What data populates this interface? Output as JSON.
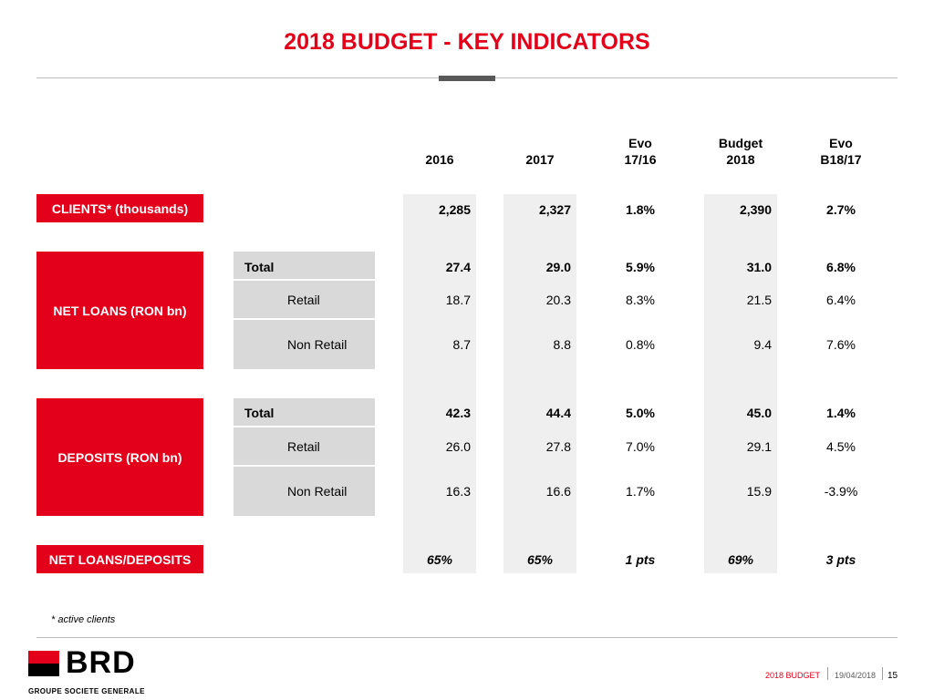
{
  "slide": {
    "title": "2018 BUDGET -  KEY INDICATORS"
  },
  "columns": {
    "y2016": "2016",
    "y2017": "2017",
    "evo1617_line1": "Evo",
    "evo1617_line2": "17/16",
    "budget2018_line1": "Budget",
    "budget2018_line2": "2018",
    "evoB1817_line1": "Evo",
    "evoB1817_line2": "B18/17"
  },
  "clients": {
    "label": "CLIENTS* (thousands)",
    "values": [
      "2,285",
      "2,327",
      "1.8%",
      "2,390",
      "2.7%"
    ]
  },
  "net_loans": {
    "label": "NET LOANS (RON bn)",
    "rows": [
      {
        "label": "Total",
        "values": [
          "27.4",
          "29.0",
          "5.9%",
          "31.0",
          "6.8%"
        ]
      },
      {
        "label": "Retail",
        "values": [
          "18.7",
          "20.3",
          "8.3%",
          "21.5",
          "6.4%"
        ]
      },
      {
        "label": "Non Retail",
        "values": [
          "8.7",
          "8.8",
          "0.8%",
          "9.4",
          "7.6%"
        ]
      }
    ]
  },
  "deposits": {
    "label": "DEPOSITS (RON bn)",
    "rows": [
      {
        "label": "Total",
        "values": [
          "42.3",
          "44.4",
          "5.0%",
          "45.0",
          "1.4%"
        ]
      },
      {
        "label": "Retail",
        "values": [
          "26.0",
          "27.8",
          "7.0%",
          "29.1",
          "4.5%"
        ]
      },
      {
        "label": "Non Retail",
        "values": [
          "16.3",
          "16.6",
          "1.7%",
          "15.9",
          "-3.9%"
        ]
      }
    ]
  },
  "ldr": {
    "label": "NET LOANS/DEPOSITS",
    "values": [
      "65%",
      "65%",
      "1 pts",
      "69%",
      "3 pts"
    ]
  },
  "footnote": "* active clients",
  "brand": {
    "name": "BRD",
    "group": "GROUPE SOCIETE GENERALE",
    "red": "#e2001a"
  },
  "footer": {
    "label": "2018 BUDGET",
    "date": "19/04/2018",
    "page": "15"
  }
}
